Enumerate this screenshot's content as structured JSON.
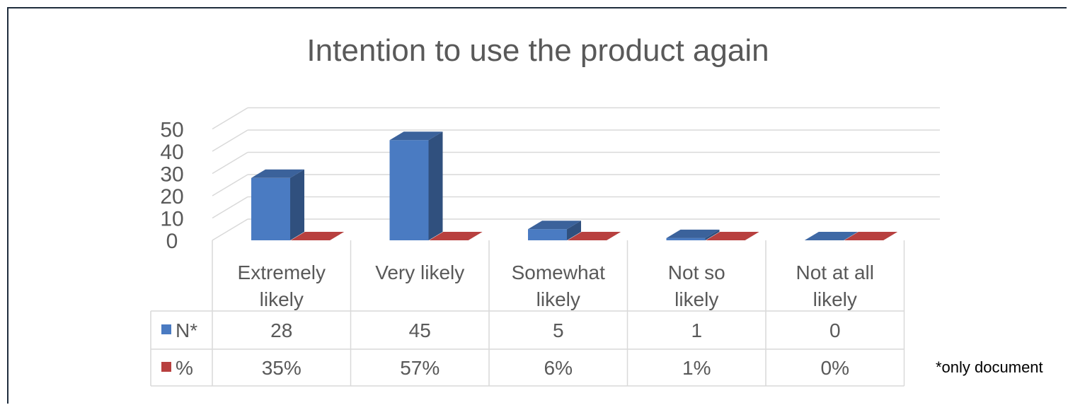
{
  "chart_data": {
    "type": "bar",
    "title": "Intention to use the product again",
    "categories": [
      [
        "Extremely",
        "likely"
      ],
      [
        "Very likely"
      ],
      [
        "Somewhat",
        "likely"
      ],
      [
        "Not so",
        "likely"
      ],
      [
        "Not at all",
        "likely"
      ]
    ],
    "series": [
      {
        "name": "N*",
        "values": [
          28,
          45,
          5,
          1,
          0
        ],
        "labels": [
          "28",
          "45",
          "5",
          "1",
          "0"
        ],
        "color": "#4a7bc2"
      },
      {
        "name": "%",
        "values": [
          0.35,
          0.57,
          0.06,
          0.01,
          0.0
        ],
        "labels": [
          "35%",
          "57%",
          "6%",
          "1%",
          "0%"
        ],
        "color": "#b8403f"
      }
    ],
    "yticks": [
      "50",
      "40",
      "30",
      "20",
      "10",
      "0"
    ],
    "ylim": [
      0,
      50
    ],
    "grid": true,
    "data_table": true,
    "footnote": "*only document"
  }
}
